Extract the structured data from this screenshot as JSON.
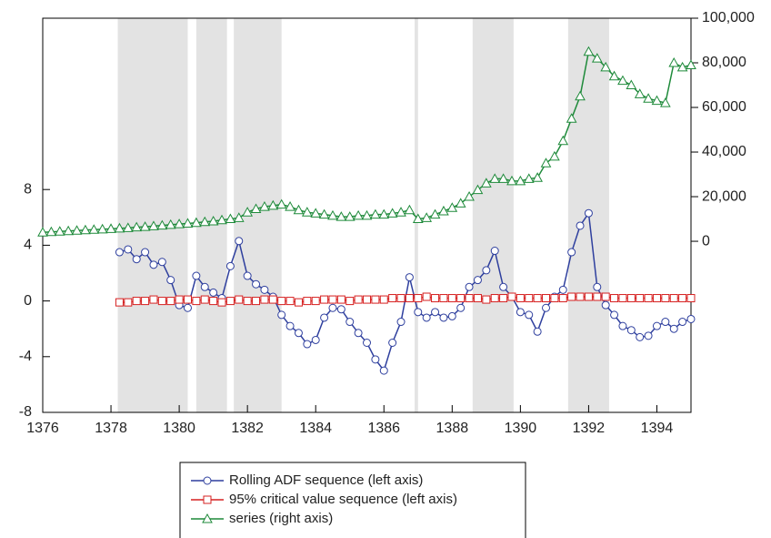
{
  "chart_data": {
    "type": "line",
    "xlim": [
      1376,
      1395
    ],
    "xticks": [
      1376,
      1378,
      1380,
      1382,
      1384,
      1386,
      1388,
      1390,
      1392,
      1394
    ],
    "ylim": [
      -8,
      20.3
    ],
    "yticks": [
      -8,
      -4,
      0,
      4,
      8
    ],
    "y2lim": [
      -76700,
      100000
    ],
    "y2ticks": [
      0,
      {
        "value": 20000,
        "label": "20,000"
      },
      {
        "value": 40000,
        "label": "40,000"
      },
      {
        "value": 60000,
        "label": "60,000"
      },
      {
        "value": 80000,
        "label": "80,000"
      },
      {
        "value": 100000,
        "label": "100,000"
      }
    ],
    "shaded_regions": [
      [
        1378.2,
        1380.25
      ],
      [
        1380.5,
        1381.4
      ],
      [
        1381.6,
        1383.0
      ],
      [
        1386.9,
        1387.0
      ],
      [
        1388.6,
        1389.8
      ],
      [
        1391.4,
        1392.6
      ]
    ],
    "shade_color": "#e3e3e3",
    "series": [
      {
        "name": "Rolling ADF sequence (left axis)",
        "color": "#2e3f9e",
        "marker": "circle",
        "axis": "y",
        "x": [
          1378.25,
          1378.5,
          1378.75,
          1379,
          1379.25,
          1379.5,
          1379.75,
          1380,
          1380.25,
          1380.5,
          1380.75,
          1381,
          1381.25,
          1381.5,
          1381.75,
          1382,
          1382.25,
          1382.5,
          1382.75,
          1383,
          1383.25,
          1383.5,
          1383.75,
          1384,
          1384.25,
          1384.5,
          1384.75,
          1385,
          1385.25,
          1385.5,
          1385.75,
          1386,
          1386.25,
          1386.5,
          1386.75,
          1387,
          1387.25,
          1387.5,
          1387.75,
          1388,
          1388.25,
          1388.5,
          1388.75,
          1389,
          1389.25,
          1389.5,
          1389.75,
          1390,
          1390.25,
          1390.5,
          1390.75,
          1391,
          1391.25,
          1391.5,
          1391.75,
          1392,
          1392.25,
          1392.5,
          1392.75,
          1393,
          1393.25,
          1393.5,
          1393.75,
          1394,
          1394.25,
          1394.5,
          1394.75,
          1395
        ],
        "values": [
          3.5,
          3.7,
          3.0,
          3.5,
          2.6,
          2.8,
          1.5,
          -0.3,
          -0.5,
          1.8,
          1.0,
          0.6,
          0.2,
          2.5,
          4.3,
          1.8,
          1.2,
          0.8,
          0.3,
          -1.0,
          -1.8,
          -2.3,
          -3.1,
          -2.8,
          -1.2,
          -0.5,
          -0.6,
          -1.5,
          -2.3,
          -3.0,
          -4.2,
          -5.0,
          -3.0,
          -1.5,
          1.7,
          -0.8,
          -1.2,
          -0.8,
          -1.2,
          -1.1,
          -0.5,
          1.0,
          1.5,
          2.2,
          3.6,
          1.0,
          0.3,
          -0.8,
          -1.0,
          -2.2,
          -0.5,
          0.3,
          0.8,
          3.5,
          5.4,
          6.3,
          1.0,
          -0.3,
          -1.0,
          -1.8,
          -2.1,
          -2.6,
          -2.5,
          -1.8,
          -1.5,
          -2.0,
          -1.5,
          -1.3
        ]
      },
      {
        "name": "95% critical value sequence (left axis)",
        "color": "#d62020",
        "marker": "square",
        "axis": "y",
        "x": [
          1378.25,
          1378.5,
          1378.75,
          1379,
          1379.25,
          1379.5,
          1379.75,
          1380,
          1380.25,
          1380.5,
          1380.75,
          1381,
          1381.25,
          1381.5,
          1381.75,
          1382,
          1382.25,
          1382.5,
          1382.75,
          1383,
          1383.25,
          1383.5,
          1383.75,
          1384,
          1384.25,
          1384.5,
          1384.75,
          1385,
          1385.25,
          1385.5,
          1385.75,
          1386,
          1386.25,
          1386.5,
          1386.75,
          1387,
          1387.25,
          1387.5,
          1387.75,
          1388,
          1388.25,
          1388.5,
          1388.75,
          1389,
          1389.25,
          1389.5,
          1389.75,
          1390,
          1390.25,
          1390.5,
          1390.75,
          1391,
          1391.25,
          1391.5,
          1391.75,
          1392,
          1392.25,
          1392.5,
          1392.75,
          1393,
          1393.25,
          1393.5,
          1393.75,
          1394,
          1394.25,
          1394.5,
          1394.75,
          1395
        ],
        "values": [
          -0.1,
          -0.1,
          0.0,
          0.0,
          0.1,
          0.0,
          0.0,
          0.1,
          0.1,
          0.0,
          0.1,
          0.0,
          -0.1,
          0.0,
          0.1,
          0.0,
          0.0,
          0.1,
          0.1,
          0.0,
          0.0,
          -0.1,
          0.0,
          0.0,
          0.1,
          0.1,
          0.1,
          0.0,
          0.1,
          0.1,
          0.1,
          0.1,
          0.2,
          0.2,
          0.2,
          0.2,
          0.3,
          0.2,
          0.2,
          0.2,
          0.2,
          0.2,
          0.2,
          0.1,
          0.2,
          0.2,
          0.3,
          0.2,
          0.2,
          0.2,
          0.2,
          0.2,
          0.2,
          0.3,
          0.3,
          0.3,
          0.3,
          0.3,
          0.2,
          0.2,
          0.2,
          0.2,
          0.2,
          0.2,
          0.2,
          0.2,
          0.2,
          0.2
        ]
      },
      {
        "name": "series (right axis)",
        "color": "#1e8a3a",
        "marker": "triangle",
        "axis": "y2",
        "x": [
          1376,
          1376.25,
          1376.5,
          1376.75,
          1377,
          1377.25,
          1377.5,
          1377.75,
          1378,
          1378.25,
          1378.5,
          1378.75,
          1379,
          1379.25,
          1379.5,
          1379.75,
          1380,
          1380.25,
          1380.5,
          1380.75,
          1381,
          1381.25,
          1381.5,
          1381.75,
          1382,
          1382.25,
          1382.5,
          1382.75,
          1383,
          1383.25,
          1383.5,
          1383.75,
          1384,
          1384.25,
          1384.5,
          1384.75,
          1385,
          1385.25,
          1385.5,
          1385.75,
          1386,
          1386.25,
          1386.5,
          1386.75,
          1387,
          1387.25,
          1387.5,
          1387.75,
          1388,
          1388.25,
          1388.5,
          1388.75,
          1389,
          1389.25,
          1389.5,
          1389.75,
          1390,
          1390.25,
          1390.5,
          1390.75,
          1391,
          1391.25,
          1391.5,
          1391.75,
          1392,
          1392.25,
          1392.5,
          1392.75,
          1393,
          1393.25,
          1393.5,
          1393.75,
          1394,
          1394.25,
          1394.5,
          1394.75,
          1395
        ],
        "values": [
          4000,
          4200,
          4400,
          4600,
          4800,
          5000,
          5200,
          5400,
          5600,
          5800,
          6000,
          6300,
          6500,
          6800,
          7100,
          7400,
          7700,
          8000,
          8300,
          8700,
          9000,
          9500,
          10000,
          10500,
          13000,
          14500,
          15500,
          16000,
          16500,
          15500,
          14000,
          13000,
          12500,
          12000,
          11500,
          11000,
          11000,
          11500,
          11500,
          12000,
          12000,
          12500,
          13000,
          14000,
          10000,
          10500,
          12000,
          13500,
          15000,
          17000,
          20000,
          23000,
          26000,
          28000,
          28000,
          27000,
          27000,
          28000,
          28500,
          35000,
          38000,
          45000,
          55000,
          65000,
          85000,
          82000,
          78000,
          74000,
          72000,
          70000,
          66000,
          64000,
          63000,
          62000,
          80000,
          78000,
          79000
        ]
      }
    ]
  }
}
